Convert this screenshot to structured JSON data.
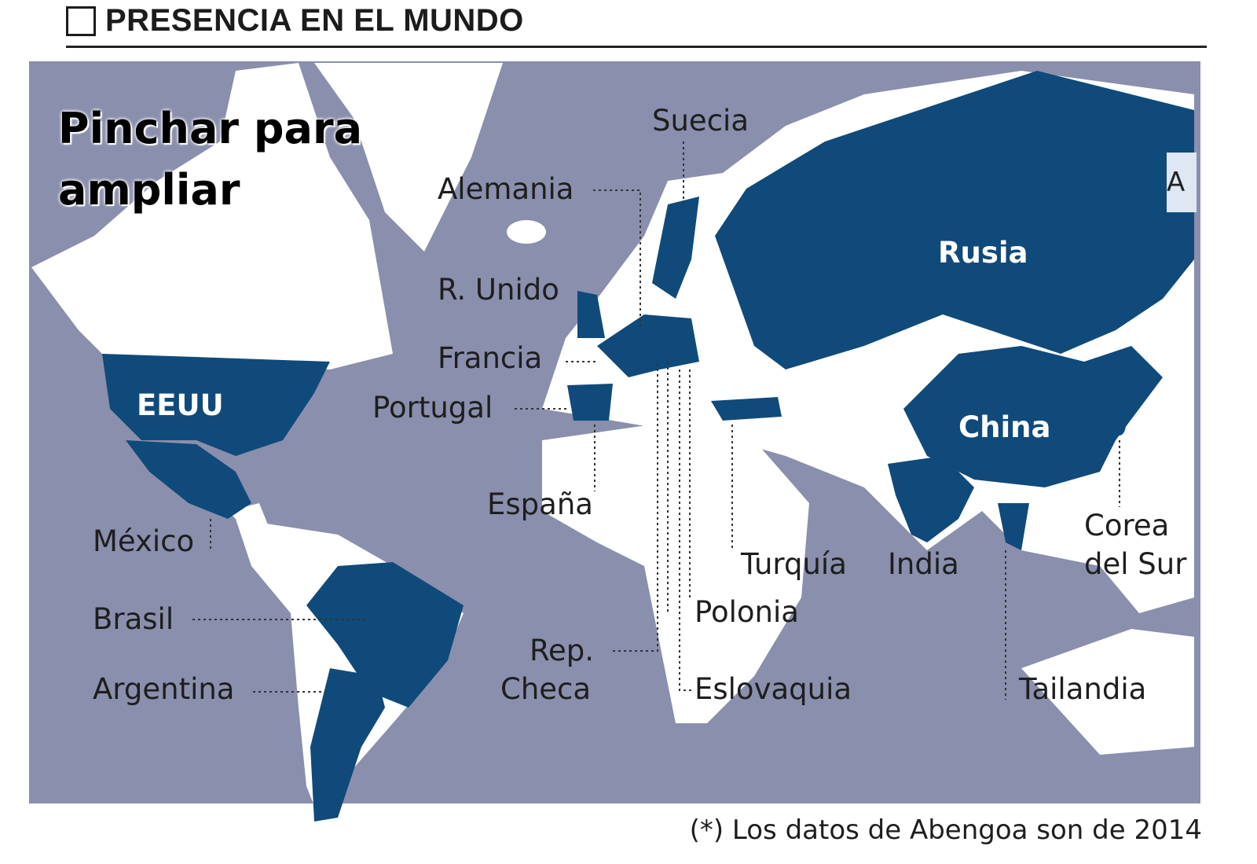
{
  "title": "PRESENCIA EN EL MUNDO",
  "overlay": {
    "line1": "Pinchar para",
    "line2": "ampliar"
  },
  "colors": {
    "ocean": "#8a8fad",
    "land": "#ffffff",
    "highlight": "#104a7a"
  },
  "countries": {
    "eeuu": "EEUU",
    "mexico": "México",
    "brasil": "Brasil",
    "argentina": "Argentina",
    "suecia": "Suecia",
    "alemania": "Alemania",
    "r_unido": "R. Unido",
    "francia": "Francia",
    "portugal": "Portugal",
    "espana": "España",
    "rep_checa_1": "Rep.",
    "rep_checa_2": "Checa",
    "polonia": "Polonia",
    "eslovaquia": "Eslovaquia",
    "turquia": "Turquía",
    "india": "India",
    "rusia": "Rusia",
    "china": "China",
    "corea_1": "Corea",
    "corea_2": "del Sur",
    "tailandia": "Tailandia"
  },
  "cut_label": "A",
  "footnote": "(*) Los datos de Abengoa son de 2014"
}
